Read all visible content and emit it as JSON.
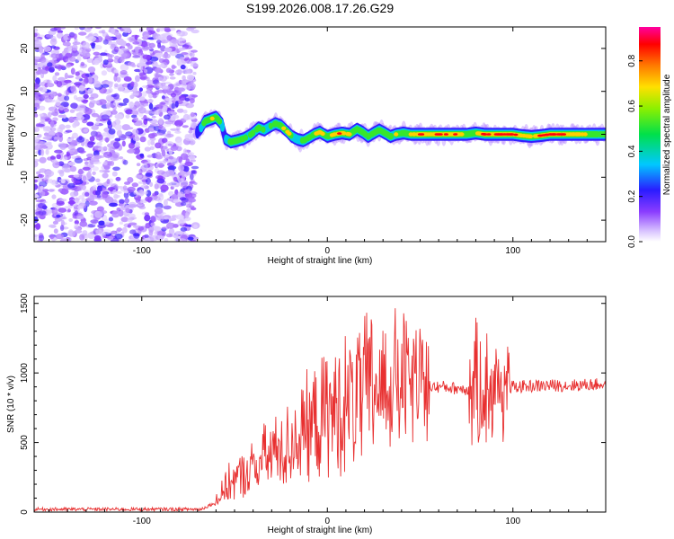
{
  "title": "S199.2026.008.17.26.G29",
  "chart_data": [
    {
      "type": "heatmap",
      "xlabel": "Height of straight line (km)",
      "ylabel": "Frequency (Hz)",
      "xlim": [
        -158,
        150
      ],
      "ylim": [
        -25,
        25
      ],
      "xticks": [
        -100,
        0,
        100
      ],
      "yticks": [
        -20,
        -10,
        0,
        10,
        20
      ],
      "colorbar": {
        "label": "Normalized spectral amplitude",
        "range": [
          0,
          0.95
        ],
        "ticks": [
          "0.0",
          "0.2",
          "0.4",
          "0.6",
          "0.8"
        ]
      },
      "noise_region_x": [
        -158,
        -71
      ],
      "signal_track": [
        {
          "x": -71,
          "f": 0,
          "amp": 0.15
        },
        {
          "x": -68,
          "f": 1.5,
          "amp": 0.3
        },
        {
          "x": -66,
          "f": 3,
          "amp": 0.5
        },
        {
          "x": -63,
          "f": 3.5,
          "amp": 0.6
        },
        {
          "x": -60,
          "f": 4,
          "amp": 0.55
        },
        {
          "x": -57,
          "f": 2.5,
          "amp": 0.45
        },
        {
          "x": -55,
          "f": -1,
          "amp": 0.3
        },
        {
          "x": -52,
          "f": -1.8,
          "amp": 0.55
        },
        {
          "x": -49,
          "f": -1.5,
          "amp": 0.6
        },
        {
          "x": -45,
          "f": -1,
          "amp": 0.45
        },
        {
          "x": -41,
          "f": 0,
          "amp": 0.5
        },
        {
          "x": -37,
          "f": 1.5,
          "amp": 0.55
        },
        {
          "x": -34,
          "f": 1,
          "amp": 0.45
        },
        {
          "x": -31,
          "f": 1.8,
          "amp": 0.5
        },
        {
          "x": -28,
          "f": 2.5,
          "amp": 0.55
        },
        {
          "x": -25,
          "f": 2,
          "amp": 0.6
        },
        {
          "x": -22,
          "f": 0.8,
          "amp": 0.7
        },
        {
          "x": -19,
          "f": -0.5,
          "amp": 0.45
        },
        {
          "x": -16,
          "f": -1.2,
          "amp": 0.4
        },
        {
          "x": -13,
          "f": -1.5,
          "amp": 0.5
        },
        {
          "x": -10,
          "f": -0.8,
          "amp": 0.55
        },
        {
          "x": -7,
          "f": 0,
          "amp": 0.6
        },
        {
          "x": -4,
          "f": 0.5,
          "amp": 0.8
        },
        {
          "x": 0,
          "f": -0.5,
          "amp": 0.55
        },
        {
          "x": 4,
          "f": 0,
          "amp": 0.7
        },
        {
          "x": 8,
          "f": 0.3,
          "amp": 0.85
        },
        {
          "x": 12,
          "f": 0,
          "amp": 0.6
        },
        {
          "x": 16,
          "f": 1.2,
          "amp": 0.5
        },
        {
          "x": 19,
          "f": 0.5,
          "amp": 0.6
        },
        {
          "x": 22,
          "f": -0.5,
          "amp": 0.5
        },
        {
          "x": 25,
          "f": 0.3,
          "amp": 0.55
        },
        {
          "x": 28,
          "f": 1,
          "amp": 0.6
        },
        {
          "x": 31,
          "f": 0.3,
          "amp": 0.65
        },
        {
          "x": 34,
          "f": -0.5,
          "amp": 0.5
        },
        {
          "x": 37,
          "f": 0,
          "amp": 0.6
        },
        {
          "x": 41,
          "f": 0.3,
          "amp": 0.55
        },
        {
          "x": 45,
          "f": 0,
          "amp": 0.6
        },
        {
          "x": 50,
          "f": 0,
          "amp": 0.85
        },
        {
          "x": 55,
          "f": 0,
          "amp": 0.75
        },
        {
          "x": 60,
          "f": 0,
          "amp": 0.9
        },
        {
          "x": 65,
          "f": 0,
          "amp": 0.8
        },
        {
          "x": 70,
          "f": 0,
          "amp": 0.85
        },
        {
          "x": 75,
          "f": 0,
          "amp": 0.6
        },
        {
          "x": 80,
          "f": 0.3,
          "amp": 0.7
        },
        {
          "x": 85,
          "f": 0,
          "amp": 0.8
        },
        {
          "x": 90,
          "f": 0,
          "amp": 0.9
        },
        {
          "x": 95,
          "f": 0,
          "amp": 0.85
        },
        {
          "x": 100,
          "f": 0,
          "amp": 0.8
        },
        {
          "x": 105,
          "f": -0.3,
          "amp": 0.75
        },
        {
          "x": 110,
          "f": -0.5,
          "amp": 0.7
        },
        {
          "x": 115,
          "f": -0.3,
          "amp": 0.8
        },
        {
          "x": 120,
          "f": 0,
          "amp": 0.85
        },
        {
          "x": 125,
          "f": 0,
          "amp": 0.9
        },
        {
          "x": 130,
          "f": 0,
          "amp": 0.7
        },
        {
          "x": 135,
          "f": 0,
          "amp": 0.65
        },
        {
          "x": 140,
          "f": 0,
          "amp": 0.6
        },
        {
          "x": 145,
          "f": 0,
          "amp": 0.55
        },
        {
          "x": 150,
          "f": 0,
          "amp": 0.5
        }
      ]
    },
    {
      "type": "line",
      "xlabel": "Height of straight line (km)",
      "ylabel": "SNR (10 * v/v)",
      "xlim": [
        -158,
        150
      ],
      "ylim": [
        0,
        1550
      ],
      "xticks": [
        -100,
        0,
        100
      ],
      "yticks": [
        0,
        500,
        1000,
        1500
      ],
      "color": "#e83030",
      "series": [
        {
          "name": "SNR",
          "x": [
            -158,
            -140,
            -120,
            -100,
            -80,
            -68,
            -62,
            -58,
            -55,
            -52,
            -50,
            -46,
            -42,
            -38,
            -34,
            -30,
            -26,
            -22,
            -18,
            -14,
            -10,
            -6,
            -2,
            0,
            4,
            8,
            12,
            16,
            20,
            24,
            28,
            32,
            36,
            38,
            40,
            44,
            48,
            52,
            56,
            60,
            64,
            68,
            72,
            76,
            80,
            82,
            84,
            86,
            88,
            90,
            92,
            94,
            96,
            100,
            110,
            120,
            130,
            140,
            150
          ],
          "y": [
            20,
            20,
            20,
            20,
            20,
            20,
            60,
            110,
            170,
            220,
            230,
            260,
            290,
            330,
            380,
            420,
            440,
            460,
            520,
            560,
            600,
            640,
            680,
            700,
            720,
            760,
            780,
            820,
            850,
            880,
            900,
            910,
            920,
            925,
            930,
            930,
            920,
            910,
            905,
            900,
            900,
            890,
            890,
            880,
            880,
            885,
            890,
            895,
            900,
            900,
            905,
            900,
            900,
            900,
            905,
            910,
            910,
            915,
            920
          ]
        }
      ]
    }
  ]
}
